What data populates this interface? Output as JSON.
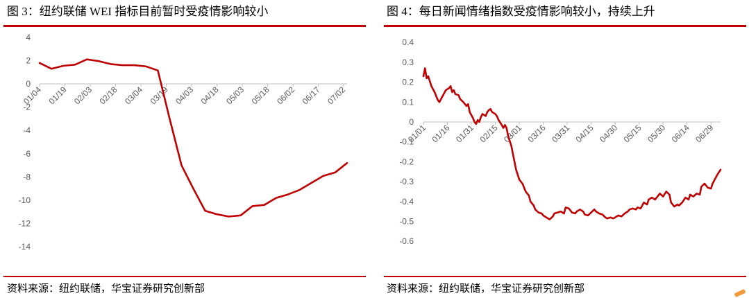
{
  "colors": {
    "accent": "#C00000",
    "axis_text": "#595959",
    "axis_line": "#BFBFBF",
    "decoration": "#F39C3C"
  },
  "chart_data": [
    {
      "type": "line",
      "title": "图 3：纽约联储 WEI 指标目前暂时受疫情影响较小",
      "source": "资料来源：纽约联储，华宝证券研究创新部",
      "x": [
        "01/04",
        "01/11",
        "01/18",
        "01/25",
        "02/01",
        "02/08",
        "02/15",
        "02/22",
        "02/29",
        "03/07",
        "03/14",
        "03/21",
        "03/28",
        "04/04",
        "04/11",
        "04/18",
        "04/25",
        "05/02",
        "05/09",
        "05/16",
        "05/23",
        "05/30",
        "06/06",
        "06/13",
        "06/20",
        "06/27",
        "07/04"
      ],
      "y": [
        1.8,
        1.3,
        1.55,
        1.65,
        2.1,
        1.95,
        1.7,
        1.6,
        1.6,
        1.5,
        1.15,
        -3.0,
        -7.0,
        -9.0,
        -10.9,
        -11.2,
        -11.4,
        -11.3,
        -10.5,
        -10.4,
        -9.8,
        -9.5,
        -9.1,
        -8.5,
        -7.9,
        -7.6,
        -6.8
      ],
      "xticks": [
        "01/04",
        "01/19",
        "02/03",
        "02/18",
        "03/04",
        "03/19",
        "04/03",
        "04/18",
        "05/03",
        "05/18",
        "06/02",
        "06/17",
        "07/02"
      ],
      "yticks": [
        4,
        2,
        0,
        -2,
        -4,
        -6,
        -8,
        -10,
        -12,
        -14
      ],
      "xlim": [
        "01/04",
        "07/04"
      ],
      "ylim": [
        -14,
        4
      ],
      "grid": false,
      "legend": "none",
      "line_color": "#C00000"
    },
    {
      "type": "line",
      "title": "图 4：每日新闻情绪指数受疫情影响较小，持续上升",
      "source": "资料来源：纽约联储，华宝证券研究创新部",
      "x": [
        "01/01",
        "01/02",
        "01/03",
        "01/04",
        "01/06",
        "01/08",
        "01/10",
        "01/11",
        "01/13",
        "01/15",
        "01/17",
        "01/18",
        "01/19",
        "01/20",
        "01/21",
        "01/23",
        "01/24",
        "01/26",
        "01/28",
        "01/29",
        "01/30",
        "02/01",
        "02/02",
        "02/03",
        "02/04",
        "02/05",
        "02/06",
        "02/07",
        "02/09",
        "02/10",
        "02/11",
        "02/12",
        "02/13",
        "02/15",
        "02/16",
        "02/17",
        "02/19",
        "02/20",
        "02/21",
        "02/22",
        "02/23",
        "02/25",
        "02/26",
        "02/27",
        "02/28",
        "03/01",
        "03/03",
        "03/04",
        "03/05",
        "03/07",
        "03/08",
        "03/10",
        "03/11",
        "03/13",
        "03/15",
        "03/16",
        "03/18",
        "03/20",
        "03/22",
        "03/23",
        "03/25",
        "03/27",
        "03/29",
        "03/30",
        "04/01",
        "04/03",
        "04/05",
        "04/06",
        "04/08",
        "04/10",
        "04/11",
        "04/13",
        "04/15",
        "04/17",
        "04/18",
        "04/20",
        "04/22",
        "04/24",
        "04/25",
        "04/27",
        "04/29",
        "05/01",
        "05/02",
        "05/04",
        "05/06",
        "05/08",
        "05/09",
        "05/11",
        "05/13",
        "05/14",
        "05/16",
        "05/18",
        "05/20",
        "05/21",
        "05/23",
        "05/25",
        "05/27",
        "05/28",
        "05/30",
        "06/01",
        "06/03",
        "06/04",
        "06/06",
        "06/08",
        "06/09",
        "06/11",
        "06/13",
        "06/15",
        "06/16",
        "06/18",
        "06/20",
        "06/22",
        "06/23",
        "06/25",
        "06/27",
        "06/29",
        "06/30",
        "07/02",
        "07/03",
        "07/05"
      ],
      "y": [
        0.23,
        0.27,
        0.22,
        0.23,
        0.18,
        0.15,
        0.11,
        0.1,
        0.13,
        0.16,
        0.17,
        0.18,
        0.15,
        0.16,
        0.14,
        0.135,
        0.115,
        0.1,
        0.08,
        0.09,
        0.05,
        0.02,
        0.0,
        -0.01,
        0.01,
        0.0,
        0.025,
        0.04,
        0.03,
        0.05,
        0.06,
        0.065,
        0.05,
        0.04,
        0.03,
        0.01,
        -0.015,
        -0.03,
        -0.015,
        -0.03,
        -0.07,
        -0.12,
        -0.16,
        -0.2,
        -0.24,
        -0.29,
        -0.31,
        -0.33,
        -0.35,
        -0.37,
        -0.4,
        -0.42,
        -0.44,
        -0.455,
        -0.46,
        -0.47,
        -0.48,
        -0.49,
        -0.475,
        -0.46,
        -0.455,
        -0.45,
        -0.46,
        -0.43,
        -0.435,
        -0.455,
        -0.46,
        -0.45,
        -0.44,
        -0.45,
        -0.465,
        -0.47,
        -0.455,
        -0.44,
        -0.45,
        -0.46,
        -0.465,
        -0.48,
        -0.485,
        -0.48,
        -0.485,
        -0.475,
        -0.47,
        -0.475,
        -0.46,
        -0.45,
        -0.44,
        -0.435,
        -0.44,
        -0.43,
        -0.435,
        -0.405,
        -0.415,
        -0.39,
        -0.38,
        -0.39,
        -0.37,
        -0.36,
        -0.375,
        -0.35,
        -0.365,
        -0.405,
        -0.425,
        -0.415,
        -0.42,
        -0.405,
        -0.38,
        -0.39,
        -0.365,
        -0.375,
        -0.36,
        -0.365,
        -0.325,
        -0.31,
        -0.33,
        -0.335,
        -0.31,
        -0.28,
        -0.265,
        -0.24
      ],
      "xticks": [
        "01/01",
        "01/16",
        "01/31",
        "02/15",
        "03/01",
        "03/16",
        "03/31",
        "04/15",
        "04/30",
        "05/15",
        "05/30",
        "06/14",
        "06/29"
      ],
      "yticks": [
        0.4,
        0.3,
        0.2,
        0.1,
        0,
        -0.1,
        -0.2,
        -0.3,
        -0.4,
        -0.5,
        -0.6
      ],
      "xlim": [
        "01/01",
        "07/05"
      ],
      "ylim": [
        -0.6,
        0.4
      ],
      "grid": false,
      "legend": "none",
      "line_color": "#C00000"
    }
  ]
}
